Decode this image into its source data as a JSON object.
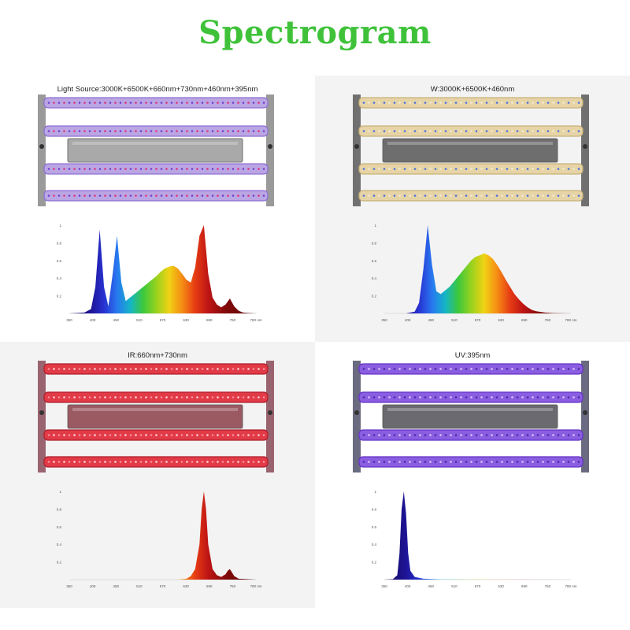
{
  "title": "Spectrogram",
  "colors": {
    "title": "#3fc23a"
  },
  "panels": [
    {
      "label": "Light Source:3000K+6500K+660nm+730nm+460nm+395nm",
      "tube_style": "full"
    },
    {
      "label": "W:3000K+6500K+460nm",
      "tube_style": "white"
    },
    {
      "label": "IR:660nm+730nm",
      "tube_style": "red"
    },
    {
      "label": "UV:395nm",
      "tube_style": "uv"
    }
  ],
  "chart_data": [
    {
      "type": "area",
      "title": "",
      "xlabel": "",
      "ylabel": "",
      "x_ticks": [
        "350",
        "400",
        "450",
        "510",
        "570",
        "630",
        "690",
        "750",
        "780 nm"
      ],
      "y_ticks": [
        "1",
        "0.8",
        "0.6",
        "0.4",
        "0.2"
      ],
      "xlim": [
        350,
        780
      ],
      "ylim": [
        0,
        1
      ],
      "series": [
        {
          "x": [
            350,
            385,
            400,
            410,
            420,
            430,
            440,
            450,
            460,
            470,
            480,
            490,
            500,
            510,
            520,
            530,
            540,
            550,
            560,
            570,
            580,
            590,
            600,
            610,
            620,
            630,
            640,
            650,
            660,
            670,
            680,
            690,
            700,
            710,
            720,
            730,
            740,
            750,
            760,
            780
          ],
          "y": [
            0,
            0.01,
            0.05,
            0.3,
            0.95,
            0.3,
            0.08,
            0.45,
            0.88,
            0.35,
            0.14,
            0.18,
            0.22,
            0.26,
            0.3,
            0.34,
            0.38,
            0.42,
            0.47,
            0.51,
            0.53,
            0.54,
            0.51,
            0.45,
            0.38,
            0.35,
            0.52,
            0.88,
            1.0,
            0.45,
            0.18,
            0.1,
            0.07,
            0.1,
            0.17,
            0.08,
            0.03,
            0.01,
            0.005,
            0
          ]
        }
      ]
    },
    {
      "type": "area",
      "title": "",
      "xlabel": "",
      "ylabel": "",
      "x_ticks": [
        "350",
        "400",
        "450",
        "510",
        "570",
        "630",
        "690",
        "750",
        "780 nm"
      ],
      "y_ticks": [
        "1",
        "0.8",
        "0.6",
        "0.4",
        "0.2"
      ],
      "xlim": [
        350,
        780
      ],
      "ylim": [
        0,
        1
      ],
      "series": [
        {
          "x": [
            350,
            400,
            420,
            430,
            440,
            450,
            460,
            470,
            480,
            490,
            500,
            510,
            520,
            530,
            540,
            550,
            560,
            570,
            580,
            590,
            600,
            610,
            620,
            630,
            640,
            650,
            660,
            670,
            680,
            690,
            700,
            720,
            740,
            780
          ],
          "y": [
            0,
            0,
            0.02,
            0.12,
            0.5,
            1.0,
            0.55,
            0.25,
            0.22,
            0.26,
            0.3,
            0.36,
            0.42,
            0.48,
            0.54,
            0.6,
            0.64,
            0.66,
            0.68,
            0.66,
            0.62,
            0.55,
            0.47,
            0.38,
            0.3,
            0.22,
            0.16,
            0.11,
            0.07,
            0.04,
            0.025,
            0.01,
            0.004,
            0
          ]
        }
      ]
    },
    {
      "type": "area",
      "title": "",
      "xlabel": "",
      "ylabel": "",
      "x_ticks": [
        "350",
        "400",
        "450",
        "510",
        "570",
        "630",
        "690",
        "750",
        "780 nm"
      ],
      "y_ticks": [
        "1",
        "0.8",
        "0.6",
        "0.4",
        "0.2"
      ],
      "xlim": [
        350,
        780
      ],
      "ylim": [
        0,
        1
      ],
      "series": [
        {
          "x": [
            350,
            600,
            620,
            630,
            640,
            650,
            655,
            660,
            665,
            670,
            680,
            690,
            700,
            710,
            715,
            720,
            730,
            740,
            780
          ],
          "y": [
            0,
            0,
            0.01,
            0.04,
            0.12,
            0.4,
            0.8,
            1.0,
            0.8,
            0.4,
            0.12,
            0.05,
            0.03,
            0.06,
            0.1,
            0.12,
            0.04,
            0.01,
            0
          ]
        }
      ]
    },
    {
      "type": "area",
      "title": "",
      "xlabel": "",
      "ylabel": "",
      "x_ticks": [
        "350",
        "400",
        "450",
        "510",
        "570",
        "630",
        "690",
        "750",
        "780 nm"
      ],
      "y_ticks": [
        "1",
        "0.8",
        "0.6",
        "0.4",
        "0.2"
      ],
      "xlim": [
        350,
        780
      ],
      "ylim": [
        0,
        1
      ],
      "series": [
        {
          "x": [
            350,
            370,
            380,
            385,
            390,
            395,
            400,
            405,
            410,
            420,
            440,
            480,
            780
          ],
          "y": [
            0,
            0.005,
            0.05,
            0.3,
            0.8,
            1.0,
            0.75,
            0.3,
            0.1,
            0.03,
            0.01,
            0.003,
            0
          ]
        }
      ]
    }
  ]
}
